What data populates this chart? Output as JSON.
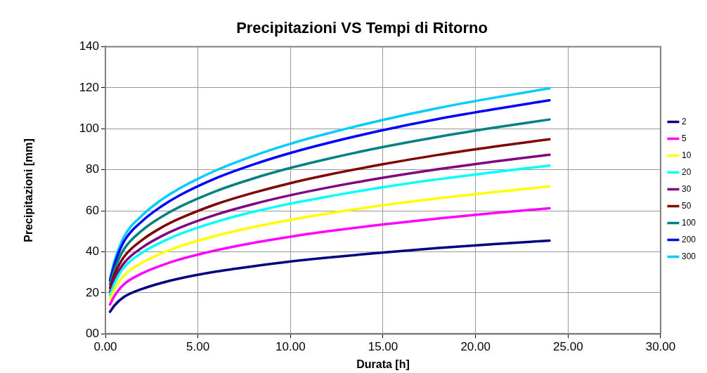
{
  "chart_data": {
    "type": "line",
    "title": "Precipitazioni VS Tempi di Ritorno",
    "xlabel": "Durata [h]",
    "ylabel": "Precipitazioni [mm]",
    "x": [
      0.25,
      0.5,
      1,
      2,
      3,
      4,
      6,
      8,
      10,
      12,
      15,
      18,
      21,
      24
    ],
    "series": [
      {
        "name": "2",
        "color": "#000080",
        "values": [
          10.8,
          14.0,
          18,
          22.0,
          24.8,
          27.0,
          30.4,
          33.0,
          35.3,
          37.2,
          39.7,
          41.9,
          43.8,
          45.5
        ]
      },
      {
        "name": "5",
        "color": "#ff00ff",
        "values": [
          14.4,
          18.7,
          24.2,
          29.6,
          33.3,
          36.3,
          40.8,
          44.4,
          47.4,
          50.0,
          53.4,
          56.3,
          58.9,
          61.2
        ]
      },
      {
        "name": "10",
        "color": "#ffff00",
        "values": [
          17,
          22.0,
          28.4,
          34.8,
          39.1,
          42.6,
          47.9,
          52.1,
          55.6,
          58.7,
          62.7,
          66.1,
          69.1,
          71.9
        ]
      },
      {
        "name": "20",
        "color": "#00ffff",
        "values": [
          19,
          24.8,
          32.4,
          39.7,
          44.6,
          48.6,
          54.7,
          59.5,
          63.5,
          66.9,
          71.5,
          75.4,
          78.9,
          82.0
        ]
      },
      {
        "name": "30",
        "color": "#800080",
        "values": [
          20.6,
          26.7,
          34.5,
          42.2,
          47.5,
          51.7,
          58.2,
          63.3,
          67.6,
          71.3,
          76.1,
          80.3,
          84.0,
          87.3
        ]
      },
      {
        "name": "50",
        "color": "#800000",
        "values": [
          22.4,
          29.0,
          37.5,
          45.9,
          51.7,
          56.2,
          63.3,
          68.8,
          73.5,
          77.5,
          82.7,
          87.3,
          91.3,
          94.9
        ]
      },
      {
        "name": "100",
        "color": "#008080",
        "values": [
          24.2,
          31.6,
          41.3,
          50.6,
          56.9,
          61.9,
          69.7,
          75.8,
          80.9,
          85.3,
          91.1,
          96.1,
          100.5,
          104.5
        ]
      },
      {
        "name": "200",
        "color": "#0000ff",
        "values": [
          26,
          34.2,
          45,
          55.1,
          62.0,
          67.5,
          76.0,
          82.6,
          88.2,
          93.0,
          99.3,
          104.8,
          109.5,
          113.9
        ]
      },
      {
        "name": "300",
        "color": "#00ccff",
        "values": [
          27,
          35.8,
          47.3,
          57.9,
          65.2,
          70.9,
          79.8,
          86.8,
          92.7,
          97.7,
          104.3,
          110.1,
          115.1,
          119.7
        ]
      }
    ],
    "xlim": [
      0,
      30
    ],
    "xticks": [
      {
        "value": 0,
        "label": "0.00"
      },
      {
        "value": 5,
        "label": "5.00"
      },
      {
        "value": 10,
        "label": "10.00"
      },
      {
        "value": 15,
        "label": "15.00"
      },
      {
        "value": 20,
        "label": "20.00"
      },
      {
        "value": 25,
        "label": "25.00"
      },
      {
        "value": 30,
        "label": "30.00"
      }
    ],
    "ylim": [
      0,
      140
    ],
    "yticks": [
      {
        "value": 0,
        "label": "00"
      },
      20,
      40,
      60,
      80,
      100,
      120,
      140
    ],
    "grid": true,
    "legend": "right",
    "marker": "none",
    "line_style": "solid"
  }
}
